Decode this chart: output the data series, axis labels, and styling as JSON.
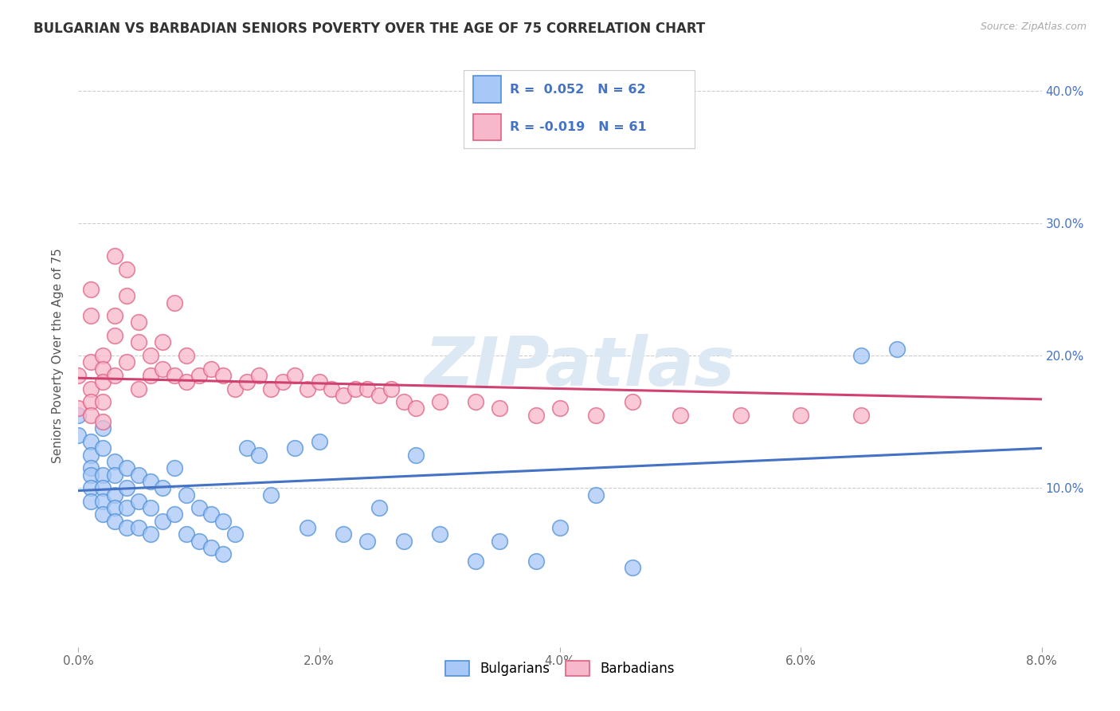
{
  "title": "BULGARIAN VS BARBADIAN SENIORS POVERTY OVER THE AGE OF 75 CORRELATION CHART",
  "source": "Source: ZipAtlas.com",
  "ylabel": "Seniors Poverty Over the Age of 75",
  "xlim": [
    0.0,
    0.08
  ],
  "ylim": [
    -0.02,
    0.42
  ],
  "xticks": [
    0.0,
    0.02,
    0.04,
    0.06,
    0.08
  ],
  "yticks": [
    0.1,
    0.2,
    0.3,
    0.4
  ],
  "ytick_labels_right": [
    "10.0%",
    "20.0%",
    "30.0%",
    "40.0%"
  ],
  "xtick_labels": [
    "0.0%",
    "2.0%",
    "4.0%",
    "6.0%",
    "8.0%"
  ],
  "blue_fill": "#A8C8F8",
  "pink_fill": "#F8B8CC",
  "blue_edge": "#5090D8",
  "pink_edge": "#E06080",
  "blue_line_color": "#4472C4",
  "pink_line_color": "#D04070",
  "watermark": "ZIPatlas",
  "title_fontsize": 12,
  "label_fontsize": 11,
  "tick_fontsize": 11,
  "blue_intercept": 0.098,
  "blue_slope": 0.4,
  "pink_intercept": 0.183,
  "pink_slope": -0.2,
  "bulgarians_x": [
    0.0,
    0.0,
    0.001,
    0.001,
    0.001,
    0.001,
    0.001,
    0.001,
    0.002,
    0.002,
    0.002,
    0.002,
    0.002,
    0.002,
    0.003,
    0.003,
    0.003,
    0.003,
    0.003,
    0.004,
    0.004,
    0.004,
    0.004,
    0.005,
    0.005,
    0.005,
    0.006,
    0.006,
    0.006,
    0.007,
    0.007,
    0.008,
    0.008,
    0.009,
    0.009,
    0.01,
    0.01,
    0.011,
    0.011,
    0.012,
    0.012,
    0.013,
    0.014,
    0.015,
    0.016,
    0.018,
    0.019,
    0.02,
    0.022,
    0.024,
    0.025,
    0.027,
    0.028,
    0.03,
    0.033,
    0.035,
    0.038,
    0.04,
    0.043,
    0.046,
    0.065,
    0.068
  ],
  "bulgarians_y": [
    0.14,
    0.155,
    0.135,
    0.125,
    0.115,
    0.11,
    0.1,
    0.09,
    0.145,
    0.13,
    0.11,
    0.1,
    0.09,
    0.08,
    0.12,
    0.11,
    0.095,
    0.085,
    0.075,
    0.115,
    0.1,
    0.085,
    0.07,
    0.11,
    0.09,
    0.07,
    0.105,
    0.085,
    0.065,
    0.1,
    0.075,
    0.115,
    0.08,
    0.095,
    0.065,
    0.085,
    0.06,
    0.08,
    0.055,
    0.075,
    0.05,
    0.065,
    0.13,
    0.125,
    0.095,
    0.13,
    0.07,
    0.135,
    0.065,
    0.06,
    0.085,
    0.06,
    0.125,
    0.065,
    0.045,
    0.06,
    0.045,
    0.07,
    0.095,
    0.04,
    0.2,
    0.205
  ],
  "barbadians_x": [
    0.0,
    0.0,
    0.001,
    0.001,
    0.001,
    0.001,
    0.001,
    0.001,
    0.002,
    0.002,
    0.002,
    0.002,
    0.002,
    0.003,
    0.003,
    0.003,
    0.003,
    0.004,
    0.004,
    0.004,
    0.005,
    0.005,
    0.005,
    0.006,
    0.006,
    0.007,
    0.007,
    0.008,
    0.008,
    0.009,
    0.009,
    0.01,
    0.011,
    0.012,
    0.013,
    0.014,
    0.015,
    0.016,
    0.017,
    0.018,
    0.019,
    0.02,
    0.021,
    0.022,
    0.023,
    0.024,
    0.025,
    0.026,
    0.027,
    0.028,
    0.03,
    0.033,
    0.035,
    0.038,
    0.04,
    0.043,
    0.046,
    0.05,
    0.055,
    0.06,
    0.065
  ],
  "barbadians_y": [
    0.185,
    0.16,
    0.25,
    0.23,
    0.195,
    0.175,
    0.165,
    0.155,
    0.2,
    0.19,
    0.18,
    0.165,
    0.15,
    0.275,
    0.23,
    0.215,
    0.185,
    0.265,
    0.245,
    0.195,
    0.225,
    0.21,
    0.175,
    0.2,
    0.185,
    0.21,
    0.19,
    0.24,
    0.185,
    0.2,
    0.18,
    0.185,
    0.19,
    0.185,
    0.175,
    0.18,
    0.185,
    0.175,
    0.18,
    0.185,
    0.175,
    0.18,
    0.175,
    0.17,
    0.175,
    0.175,
    0.17,
    0.175,
    0.165,
    0.16,
    0.165,
    0.165,
    0.16,
    0.155,
    0.16,
    0.155,
    0.165,
    0.155,
    0.155,
    0.155,
    0.155
  ]
}
